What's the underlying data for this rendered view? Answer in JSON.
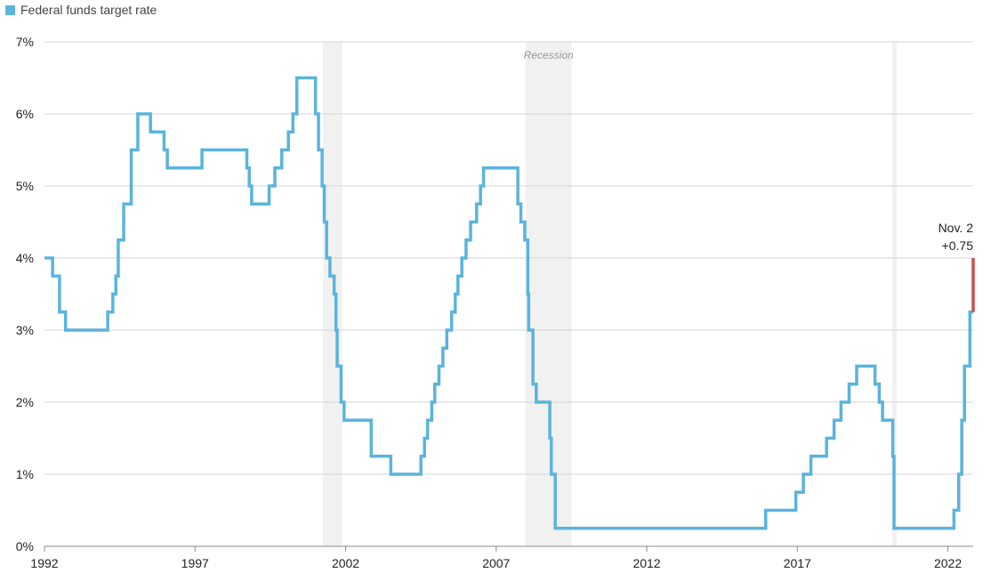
{
  "legend": {
    "label": "Federal funds target rate",
    "color": "#5ab4dc"
  },
  "recession_label": "Recession",
  "annotation": {
    "date": "Nov. 2",
    "change": "+0.75",
    "color": "#c9504d"
  },
  "chart_data": {
    "type": "line",
    "step": true,
    "title": "",
    "xlabel": "",
    "ylabel": "",
    "xlim": [
      1992,
      2022.84
    ],
    "ylim": [
      0,
      7
    ],
    "x_ticks": [
      1992,
      1997,
      2002,
      2007,
      2012,
      2017,
      2022
    ],
    "y_ticks": [
      0,
      1,
      2,
      3,
      4,
      5,
      6,
      7
    ],
    "y_tick_labels": [
      "0%",
      "1%",
      "2%",
      "3%",
      "4%",
      "5%",
      "6%",
      "7%"
    ],
    "grid": "horizontal",
    "legend_position": "top-left",
    "recessions": [
      [
        2001.25,
        2001.88
      ],
      [
        2007.98,
        2009.5
      ],
      [
        2020.15,
        2020.3
      ]
    ],
    "series": [
      {
        "name": "Federal funds target rate",
        "color": "#5ab4dc",
        "points": [
          [
            1992.0,
            4.0
          ],
          [
            1992.27,
            3.75
          ],
          [
            1992.5,
            3.25
          ],
          [
            1992.7,
            3.0
          ],
          [
            1994.1,
            3.25
          ],
          [
            1994.27,
            3.5
          ],
          [
            1994.37,
            3.75
          ],
          [
            1994.45,
            4.25
          ],
          [
            1994.63,
            4.75
          ],
          [
            1994.88,
            5.5
          ],
          [
            1995.1,
            6.0
          ],
          [
            1995.52,
            5.75
          ],
          [
            1995.97,
            5.5
          ],
          [
            1996.08,
            5.25
          ],
          [
            1997.23,
            5.5
          ],
          [
            1998.72,
            5.25
          ],
          [
            1998.8,
            5.0
          ],
          [
            1998.88,
            4.75
          ],
          [
            1999.46,
            5.0
          ],
          [
            1999.65,
            5.25
          ],
          [
            1999.88,
            5.5
          ],
          [
            2000.1,
            5.75
          ],
          [
            2000.25,
            6.0
          ],
          [
            2000.38,
            6.5
          ],
          [
            2001.0,
            6.0
          ],
          [
            2001.1,
            5.5
          ],
          [
            2001.22,
            5.0
          ],
          [
            2001.29,
            4.5
          ],
          [
            2001.37,
            4.0
          ],
          [
            2001.48,
            3.75
          ],
          [
            2001.62,
            3.5
          ],
          [
            2001.68,
            3.0
          ],
          [
            2001.72,
            2.5
          ],
          [
            2001.85,
            2.0
          ],
          [
            2001.95,
            1.75
          ],
          [
            2002.85,
            1.25
          ],
          [
            2003.5,
            1.0
          ],
          [
            2004.5,
            1.25
          ],
          [
            2004.62,
            1.5
          ],
          [
            2004.72,
            1.75
          ],
          [
            2004.86,
            2.0
          ],
          [
            2004.96,
            2.25
          ],
          [
            2005.1,
            2.5
          ],
          [
            2005.23,
            2.75
          ],
          [
            2005.36,
            3.0
          ],
          [
            2005.52,
            3.25
          ],
          [
            2005.64,
            3.5
          ],
          [
            2005.73,
            3.75
          ],
          [
            2005.86,
            4.0
          ],
          [
            2006.0,
            4.25
          ],
          [
            2006.15,
            4.5
          ],
          [
            2006.35,
            4.75
          ],
          [
            2006.48,
            5.0
          ],
          [
            2006.58,
            5.25
          ],
          [
            2007.72,
            4.75
          ],
          [
            2007.82,
            4.5
          ],
          [
            2007.95,
            4.25
          ],
          [
            2008.05,
            3.5
          ],
          [
            2008.08,
            3.0
          ],
          [
            2008.22,
            2.25
          ],
          [
            2008.33,
            2.0
          ],
          [
            2008.78,
            1.5
          ],
          [
            2008.83,
            1.0
          ],
          [
            2008.96,
            0.25
          ],
          [
            2015.95,
            0.5
          ],
          [
            2016.95,
            0.75
          ],
          [
            2017.2,
            1.0
          ],
          [
            2017.45,
            1.25
          ],
          [
            2017.97,
            1.5
          ],
          [
            2018.22,
            1.75
          ],
          [
            2018.45,
            2.0
          ],
          [
            2018.72,
            2.25
          ],
          [
            2018.97,
            2.5
          ],
          [
            2019.58,
            2.25
          ],
          [
            2019.72,
            2.0
          ],
          [
            2019.83,
            1.75
          ],
          [
            2020.17,
            1.25
          ],
          [
            2020.21,
            0.25
          ],
          [
            2022.2,
            0.5
          ],
          [
            2022.36,
            1.0
          ],
          [
            2022.46,
            1.75
          ],
          [
            2022.55,
            2.5
          ],
          [
            2022.73,
            3.25
          ],
          [
            2022.84,
            3.25
          ]
        ]
      },
      {
        "name": "Nov. 2 +0.75",
        "color": "#c9504d",
        "points": [
          [
            2022.84,
            3.25
          ],
          [
            2022.84,
            4.0
          ]
        ]
      }
    ]
  }
}
